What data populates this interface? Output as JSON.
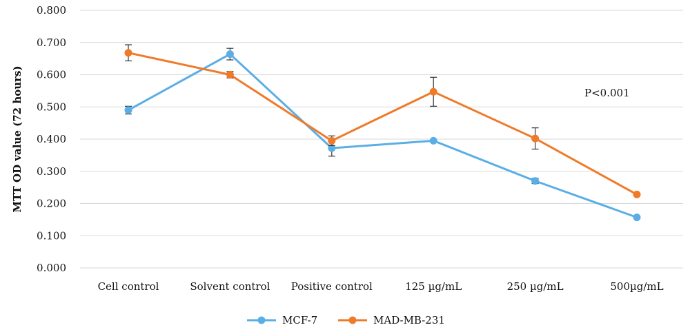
{
  "chart_data": {
    "type": "line",
    "categories": [
      "Cell control",
      "Solvent control",
      "Positive control",
      "125 µg/mL",
      "250 µg/mL",
      "500µg/mL"
    ],
    "ylabel": "MTT OD value (72 hours)",
    "xlabel": "",
    "ylim": [
      0,
      0.8
    ],
    "yticks": [
      "0.000",
      "0.100",
      "0.200",
      "0.300",
      "0.400",
      "0.500",
      "0.600",
      "0.700",
      "0.800"
    ],
    "grid": "horizontal",
    "legend_position": "bottom",
    "annotation": "P<0.001",
    "series": [
      {
        "name": "MCF-7",
        "color": "#5aaee6",
        "values": [
          0.49,
          0.664,
          0.372,
          0.395,
          0.27,
          0.157
        ],
        "errors": [
          0.012,
          0.018,
          0.025,
          0.0,
          0.008,
          0.0
        ]
      },
      {
        "name": "MAD-MB-231",
        "color": "#f07a29",
        "values": [
          0.668,
          0.6,
          0.395,
          0.547,
          0.402,
          0.228
        ],
        "errors": [
          0.025,
          0.01,
          0.015,
          0.045,
          0.033,
          0.0
        ]
      }
    ]
  }
}
